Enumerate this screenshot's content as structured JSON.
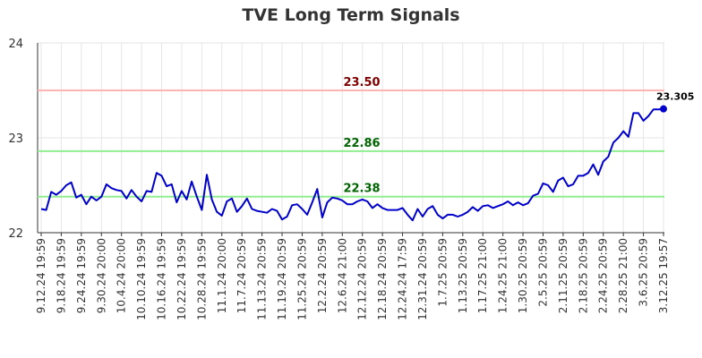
{
  "chart_data": {
    "type": "line",
    "title": "TVE Long Term Signals",
    "xlabel": "",
    "ylabel": "",
    "ylim": [
      22,
      24
    ],
    "y_ticks": [
      "22",
      "23",
      "24"
    ],
    "x_tick_labels": [
      "9.12.24 19:59",
      "9.18.24 19:59",
      "9.24.24 19:59",
      "9.30.24 20:00",
      "10.4.24 20:00",
      "10.10.24 19:59",
      "10.16.24 19:59",
      "10.22.24 19:59",
      "10.28.24 19:59",
      "11.1.24 20:00",
      "11.7.24 20:59",
      "11.13.24 20:59",
      "11.19.24 20:59",
      "11.25.24 20:59",
      "12.2.24 20:59",
      "12.6.24 21:00",
      "12.12.24 20:59",
      "12.18.24 20:59",
      "12.24.24 17:59",
      "12.31.24 20:59",
      "1.7.25 20:59",
      "1.13.25 20:59",
      "1.17.25 21:00",
      "1.24.25 21:00",
      "1.30.25 20:59",
      "2.5.25 20:59",
      "2.11.25 20:59",
      "2.18.25 20:59",
      "2.24.25 20:59",
      "2.28.25 21:00",
      "3.6.25 20:59",
      "3.12.25 19:57"
    ],
    "grid": true,
    "series": [
      {
        "name": "",
        "color": "#0000cc",
        "values": [
          22.25,
          22.24,
          22.43,
          22.4,
          22.44,
          22.5,
          22.53,
          22.37,
          22.4,
          22.3,
          22.38,
          22.34,
          22.38,
          22.51,
          22.47,
          22.45,
          22.44,
          22.36,
          22.45,
          22.38,
          22.33,
          22.44,
          22.43,
          22.63,
          22.6,
          22.49,
          22.51,
          22.32,
          22.44,
          22.35,
          22.54,
          22.38,
          22.24,
          22.61,
          22.35,
          22.22,
          22.18,
          22.33,
          22.36,
          22.22,
          22.28,
          22.36,
          22.25,
          22.23,
          22.22,
          22.21,
          22.25,
          22.23,
          22.14,
          22.17,
          22.29,
          22.3,
          22.25,
          22.19,
          22.32,
          22.46,
          22.16,
          22.32,
          22.37,
          22.36,
          22.34,
          22.3,
          22.3,
          22.33,
          22.35,
          22.33,
          22.26,
          22.3,
          22.26,
          22.24,
          22.24,
          22.24,
          22.26,
          22.19,
          22.13,
          22.25,
          22.17,
          22.25,
          22.28,
          22.19,
          22.15,
          22.19,
          22.19,
          22.17,
          22.19,
          22.22,
          22.27,
          22.23,
          22.28,
          22.29,
          22.26,
          22.28,
          22.3,
          22.33,
          22.29,
          22.32,
          22.29,
          22.31,
          22.39,
          22.41,
          22.52,
          22.5,
          22.43,
          22.55,
          22.58,
          22.49,
          22.51,
          22.6,
          22.6,
          22.63,
          22.72,
          22.61,
          22.75,
          22.8,
          22.95,
          23.0,
          23.07,
          23.01,
          23.26,
          23.26,
          23.18,
          23.23,
          23.3,
          23.3,
          23.305
        ]
      }
    ],
    "reference_lines": [
      {
        "label": "23.50",
        "value": 23.5,
        "line_color": "#ffb3b3",
        "text_color": "#800000"
      },
      {
        "label": "22.86",
        "value": 22.86,
        "line_color": "#90ee90",
        "text_color": "#006400"
      },
      {
        "label": "22.38",
        "value": 22.38,
        "line_color": "#90ee90",
        "text_color": "#006400"
      }
    ],
    "last_value_label": "23.305"
  }
}
